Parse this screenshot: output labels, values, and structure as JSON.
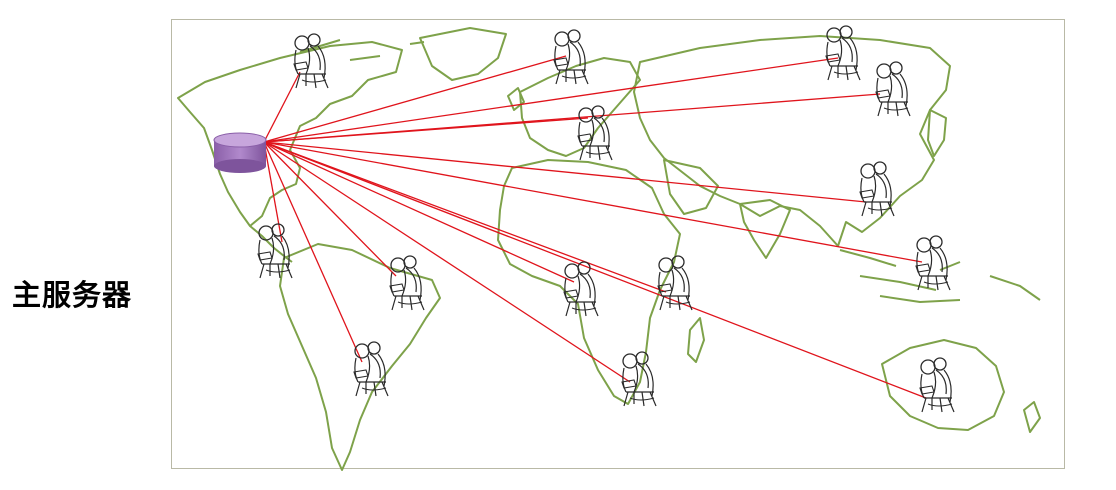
{
  "label": "主服务器",
  "colors": {
    "land": "#7ea24a",
    "link": "#e0141c",
    "server": "#9b6fb6",
    "frame": "#b9b9a6",
    "person": "#2a2a2a"
  },
  "icons": {
    "server": "database-cylinder-icon",
    "client": "person-at-computer-icon"
  }
}
